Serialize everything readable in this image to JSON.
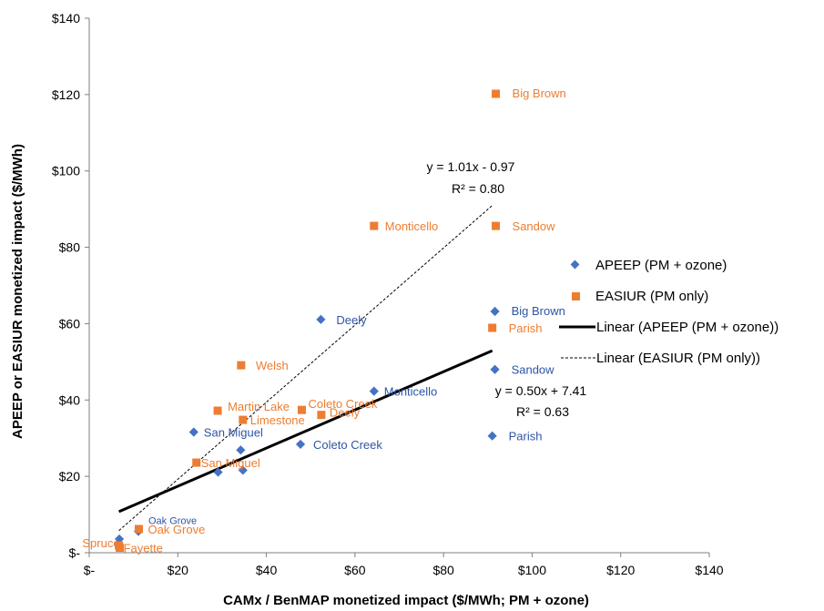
{
  "chart_data": {
    "type": "scatter",
    "xlabel": "CAMx / BenMAP monetized impact ($/MWh; PM + ozone)",
    "ylabel": "APEEP or EASIUR monetized impact ($/MWh)",
    "xlim": [
      0,
      140
    ],
    "ylim": [
      0,
      140
    ],
    "x_ticks": [
      0,
      20,
      40,
      60,
      80,
      100,
      120,
      140
    ],
    "y_ticks": [
      0,
      20,
      40,
      60,
      80,
      100,
      120,
      140
    ],
    "x_tick_labels": [
      "$-",
      "$20",
      "$40",
      "$60",
      "$80",
      "$100",
      "$120",
      "$140"
    ],
    "y_tick_labels": [
      "$-",
      "$20",
      "$40",
      "$60",
      "$80",
      "$100",
      "$120",
      "$140"
    ],
    "grid": false,
    "legend_position": "right",
    "series": [
      {
        "name": "APEEP (PM + ozone)",
        "marker": "diamond",
        "color": "#4472C4",
        "label_color": "#2F55A4",
        "points": [
          {
            "label": "Big Brown",
            "x": 91.6,
            "y": 63.2
          },
          {
            "label": "Sandow",
            "x": 91.6,
            "y": 48.0
          },
          {
            "label": "Parish",
            "x": 91.0,
            "y": 30.6
          },
          {
            "label": "Deely",
            "x": 52.3,
            "y": 61.1
          },
          {
            "label": "Monticello",
            "x": 64.3,
            "y": 42.3
          },
          {
            "label": "Coleto Creek",
            "x": 47.7,
            "y": 28.4
          },
          {
            "label": "San Miguel",
            "x": 23.6,
            "y": 31.6
          },
          {
            "label": "",
            "x": 34.2,
            "y": 26.9
          },
          {
            "label": "",
            "x": 29.1,
            "y": 21.1
          },
          {
            "label": "",
            "x": 34.7,
            "y": 21.6
          },
          {
            "label": "Oak Grove",
            "x": 11.1,
            "y": 5.6
          },
          {
            "label": "",
            "x": 6.8,
            "y": 3.6
          }
        ]
      },
      {
        "name": "EASIUR (PM only)",
        "marker": "square",
        "color": "#ED7D31",
        "label_color": "#ED7D31",
        "points": [
          {
            "label": "Big Brown",
            "x": 91.8,
            "y": 120.2
          },
          {
            "label": "Monticello",
            "x": 64.3,
            "y": 85.6
          },
          {
            "label": "Sandow",
            "x": 91.8,
            "y": 85.6
          },
          {
            "label": "Parish",
            "x": 91.0,
            "y": 58.9
          },
          {
            "label": "Welsh",
            "x": 34.3,
            "y": 49.1
          },
          {
            "label": "Martin Lake",
            "x": 29.0,
            "y": 37.2
          },
          {
            "label": "Coleto Creek",
            "x": 48.0,
            "y": 37.4
          },
          {
            "label": "Limestone",
            "x": 34.7,
            "y": 34.8
          },
          {
            "label": "Deely",
            "x": 52.4,
            "y": 36.1
          },
          {
            "label": "San Miguel",
            "x": 24.2,
            "y": 23.6
          },
          {
            "label": "Oak Grove",
            "x": 11.2,
            "y": 6.2
          },
          {
            "label": "Spruce",
            "x": 6.7,
            "y": 1.9
          },
          {
            "label": "Fayette",
            "x": 6.9,
            "y": 1.3
          }
        ]
      },
      {
        "name": "Linear (APEEP (PM + ozone))",
        "type": "trendline",
        "style": "solid",
        "color": "#000000",
        "slope": 0.5,
        "intercept": 7.41,
        "x_range": [
          6.7,
          91.0
        ],
        "equation": "y = 0.50x + 7.41",
        "r2": "R² = 0.63"
      },
      {
        "name": "Linear (EASIUR (PM only))",
        "type": "trendline",
        "style": "dashed",
        "color": "#000000",
        "slope": 1.01,
        "intercept": -0.97,
        "x_range": [
          6.7,
          91.0
        ],
        "equation": "y = 1.01x - 0.97",
        "r2": "R² = 0.80"
      }
    ]
  }
}
